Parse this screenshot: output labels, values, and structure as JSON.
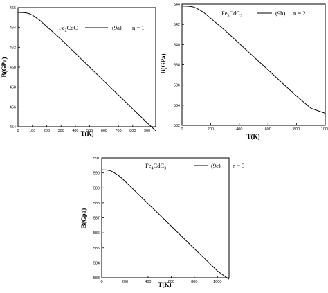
{
  "chart_data": [
    {
      "type": "line",
      "xlabel": "T(K)",
      "ylabel": "B(GPa)",
      "xlim": [
        0,
        960
      ],
      "ylim": [
        454,
        466
      ],
      "xticks": [
        0,
        100,
        200,
        300,
        400,
        500,
        600,
        700,
        800,
        900
      ],
      "yticks": [
        454,
        456,
        458,
        460,
        462,
        464,
        466
      ],
      "legend": {
        "compound_base": "Fe",
        "compound_sub1": "2",
        "compound_mid": "CdC",
        "compound_sub2": "",
        "compound_end": "",
        "tag": "(9a)",
        "n_label": "n = 1"
      },
      "series": [
        {
          "x": [
            0,
            20,
            40,
            60,
            80,
            100,
            150,
            200,
            250,
            300,
            400,
            500,
            600,
            700,
            800,
            900,
            960
          ],
          "y": [
            465.5,
            465.5,
            465.49,
            465.46,
            465.38,
            465.25,
            464.75,
            464.1,
            463.45,
            462.8,
            461.4,
            460.0,
            458.6,
            457.2,
            455.8,
            454.4,
            453.6
          ]
        }
      ]
    },
    {
      "type": "line",
      "xlabel": "T(K)",
      "ylabel": "B(GPa)",
      "xlim": [
        0,
        1000
      ],
      "ylim": [
        532,
        544
      ],
      "xticks": [
        0,
        200,
        400,
        600,
        800,
        1000
      ],
      "yticks": [
        532,
        534,
        536,
        538,
        540,
        542,
        544
      ],
      "legend": {
        "compound_base": "Fe",
        "compound_sub1": "3",
        "compound_mid": "CdC",
        "compound_sub2": "2",
        "compound_end": "",
        "tag": "(9b)",
        "n_label": "n = 2"
      },
      "series": [
        {
          "x": [
            0,
            20,
            40,
            60,
            80,
            100,
            150,
            200,
            300,
            400,
            500,
            600,
            700,
            800,
            900,
            1000
          ],
          "y": [
            543.8,
            543.8,
            543.79,
            543.77,
            543.72,
            543.6,
            543.2,
            542.6,
            541.4,
            540.1,
            538.8,
            537.5,
            536.2,
            534.9,
            533.7,
            533.2
          ]
        }
      ]
    },
    {
      "type": "line",
      "xlabel": "T(K)",
      "ylabel": "B(Gpa)",
      "xlim": [
        0,
        1100
      ],
      "ylim": [
        583,
        591
      ],
      "xticks": [
        0,
        200,
        400,
        600,
        800,
        1000
      ],
      "yticks": [
        583,
        584,
        585,
        586,
        587,
        588,
        589,
        590,
        591
      ],
      "legend": {
        "compound_base": "Fe",
        "compound_sub1": "4",
        "compound_mid": "CdC",
        "compound_sub2": "3",
        "compound_end": "",
        "tag": "(9c)",
        "n_label": "n = 3"
      },
      "series": [
        {
          "x": [
            0,
            20,
            40,
            60,
            80,
            100,
            150,
            200,
            300,
            400,
            500,
            600,
            700,
            800,
            900,
            1000,
            1100
          ],
          "y": [
            590.2,
            590.2,
            590.19,
            590.17,
            590.13,
            590.05,
            589.8,
            589.45,
            588.7,
            587.95,
            587.2,
            586.45,
            585.7,
            584.95,
            584.2,
            583.45,
            582.9
          ]
        }
      ]
    }
  ]
}
